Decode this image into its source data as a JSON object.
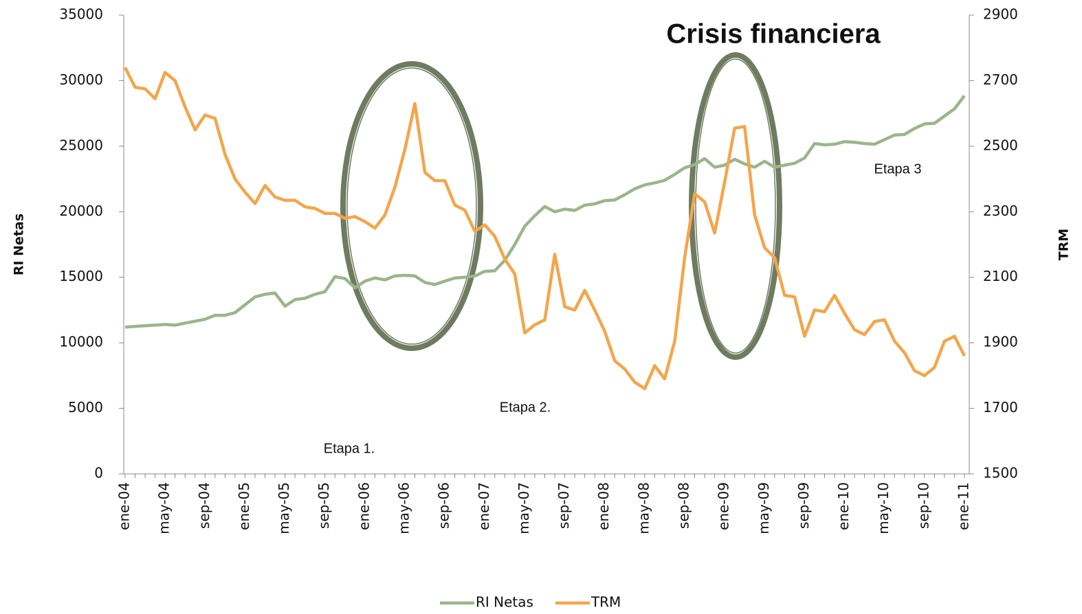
{
  "chart_data": {
    "type": "line",
    "title": "Crisis financiera",
    "y_label": "RI Netas",
    "y2_label": "TRM",
    "annotations": [
      "Etapa 1.",
      "Etapa 2.",
      "Etapa 3"
    ],
    "categories": [
      "ene-04",
      null,
      null,
      null,
      "may-04",
      null,
      null,
      null,
      "sep-04",
      null,
      null,
      null,
      "ene-05",
      null,
      null,
      null,
      "may-05",
      null,
      null,
      null,
      "sep-05",
      null,
      null,
      null,
      "ene-06",
      null,
      null,
      null,
      "may-06",
      null,
      null,
      null,
      "sep-06",
      null,
      null,
      null,
      "ene-07",
      null,
      null,
      null,
      "may-07",
      null,
      null,
      null,
      "sep-07",
      null,
      null,
      null,
      "ene-08",
      null,
      null,
      null,
      "may-08",
      null,
      null,
      null,
      "sep-08",
      null,
      null,
      null,
      "ene-09",
      null,
      null,
      null,
      "may-09",
      null,
      null,
      null,
      "sep-09",
      null,
      null,
      null,
      "ene-10",
      null,
      null,
      null,
      "may-10",
      null,
      null,
      null,
      "sep-10",
      null,
      null,
      null,
      "ene-11"
    ],
    "series": [
      {
        "name": "RI Netas",
        "color": "#9bb58a",
        "axis": "y",
        "values": [
          11200,
          11250,
          11300,
          11350,
          11400,
          11350,
          11500,
          11650,
          11800,
          12100,
          12100,
          12300,
          12900,
          13500,
          13700,
          13800,
          12800,
          13300,
          13400,
          13700,
          13900,
          15050,
          14900,
          14200,
          14700,
          14950,
          14800,
          15100,
          15150,
          15100,
          14600,
          14450,
          14700,
          14950,
          15000,
          15100,
          15450,
          15500,
          16300,
          17500,
          18900,
          19700,
          20400,
          20000,
          20200,
          20100,
          20500,
          20600,
          20850,
          20900,
          21300,
          21750,
          22050,
          22200,
          22400,
          22850,
          23350,
          23600,
          24050,
          23400,
          23550,
          24000,
          23650,
          23400,
          23850,
          23400,
          23550,
          23700,
          24100,
          25200,
          25100,
          25150,
          25350,
          25300,
          25200,
          25150,
          25500,
          25850,
          25900,
          26350,
          26700,
          26750,
          27300,
          27850,
          28850
        ]
      },
      {
        "name": "TRM",
        "color": "#f4a54a",
        "axis": "y2",
        "values": [
          2740,
          2680,
          2675,
          2645,
          2725,
          2700,
          2620,
          2550,
          2595,
          2585,
          2475,
          2400,
          2360,
          2325,
          2380,
          2345,
          2335,
          2335,
          2315,
          2310,
          2295,
          2295,
          2280,
          2285,
          2270,
          2250,
          2290,
          2375,
          2490,
          2630,
          2420,
          2395,
          2395,
          2320,
          2305,
          2240,
          2260,
          2225,
          2155,
          2110,
          1930,
          1955,
          1970,
          2170,
          2010,
          2000,
          2060,
          2000,
          1935,
          1845,
          1820,
          1780,
          1760,
          1830,
          1790,
          1905,
          2160,
          2355,
          2330,
          2235,
          2390,
          2555,
          2560,
          2290,
          2190,
          2160,
          2045,
          2040,
          1920,
          2000,
          1995,
          2045,
          1990,
          1940,
          1925,
          1965,
          1970,
          1905,
          1870,
          1815,
          1800,
          1825,
          1905,
          1920,
          1860
        ]
      }
    ],
    "ylim": [
      0,
      35000
    ],
    "yticks": [
      0,
      5000,
      10000,
      15000,
      20000,
      25000,
      30000,
      35000
    ],
    "y2lim": [
      1500,
      2900
    ],
    "y2ticks": [
      1500,
      1700,
      1900,
      2100,
      2300,
      2500,
      2700,
      2900
    ]
  }
}
